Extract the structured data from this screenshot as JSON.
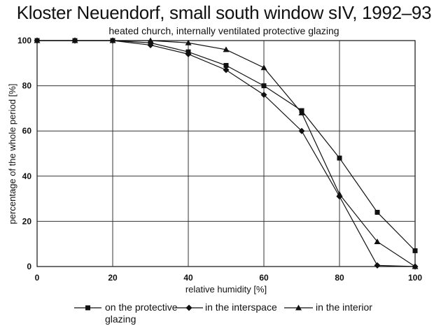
{
  "chart_data": {
    "type": "line",
    "title": "Kloster Neuendorf, small south window sIV, 1992–93",
    "subtitle": "heated church, internally ventilated protective glazing",
    "xlabel": "relative humidity [%]",
    "ylabel": "percentage of the whole period [%]",
    "xlim": [
      0,
      100
    ],
    "ylim": [
      0,
      100
    ],
    "xticks": [
      0,
      20,
      40,
      60,
      80,
      100
    ],
    "yticks": [
      0,
      20,
      40,
      60,
      80,
      100
    ],
    "grid": true,
    "legend_position": "bottom",
    "series": [
      {
        "name_lines": [
          "on the protective",
          "glazing"
        ],
        "marker": "square",
        "color": "#111111",
        "x": [
          0,
          10,
          20,
          30,
          40,
          50,
          60,
          70,
          80,
          90,
          100
        ],
        "y": [
          100,
          100,
          100,
          99,
          95,
          89,
          80,
          69,
          48,
          24,
          7
        ]
      },
      {
        "name": "in the interspace",
        "marker": "diamond",
        "color": "#111111",
        "x": [
          0,
          10,
          20,
          30,
          40,
          50,
          60,
          70,
          80,
          90,
          100
        ],
        "y": [
          100,
          100,
          100,
          98,
          94,
          87,
          76,
          60,
          31,
          0.5,
          0
        ]
      },
      {
        "name": "in the interior",
        "marker": "triangle",
        "color": "#111111",
        "x": [
          0,
          10,
          20,
          30,
          40,
          50,
          60,
          70,
          80,
          90,
          100
        ],
        "y": [
          100,
          100,
          100,
          100,
          99,
          96,
          88,
          68,
          32,
          11,
          0
        ]
      }
    ]
  }
}
